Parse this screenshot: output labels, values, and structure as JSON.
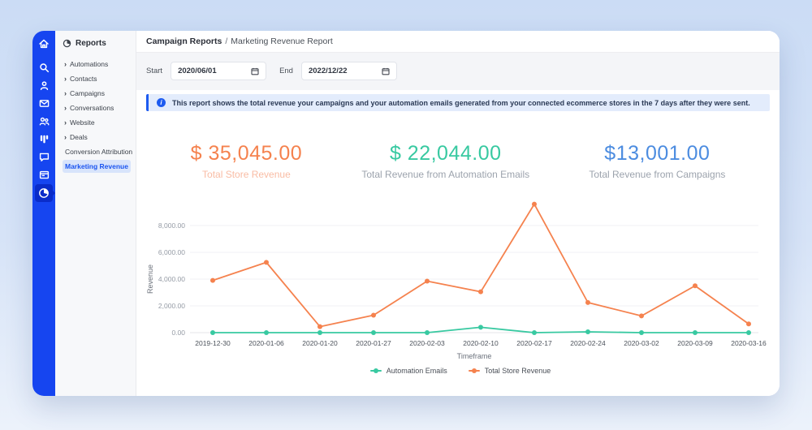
{
  "icons": {
    "chevron": "›",
    "info_letter": "i"
  },
  "sidebar": {
    "icons": [
      "home",
      "search",
      "contacts",
      "email",
      "team",
      "pipeline",
      "chat",
      "billing",
      "reports"
    ],
    "active_icon": "reports"
  },
  "reports_nav": {
    "header": "Reports",
    "items": [
      {
        "label": "Automations",
        "chevron": true,
        "selected": false
      },
      {
        "label": "Contacts",
        "chevron": true,
        "selected": false
      },
      {
        "label": "Campaigns",
        "chevron": true,
        "selected": false
      },
      {
        "label": "Conversations",
        "chevron": true,
        "selected": false
      },
      {
        "label": "Website",
        "chevron": true,
        "selected": false
      },
      {
        "label": "Deals",
        "chevron": true,
        "selected": false
      },
      {
        "label": "Conversion Attribution",
        "chevron": false,
        "selected": false
      },
      {
        "label": "Marketing Revenue",
        "chevron": false,
        "selected": true
      }
    ]
  },
  "breadcrumb": {
    "section": "Campaign Reports",
    "separator": "/",
    "page": "Marketing Revenue Report"
  },
  "filters": {
    "start_label": "Start",
    "start_value": "2020/06/01",
    "end_label": "End",
    "end_value": "2022/12/22"
  },
  "banner": {
    "text": "This report shows the total revenue your campaigns and your automation emails generated from your connected ecommerce stores in the 7 days after they were sent."
  },
  "stats": [
    {
      "value": "$ 35,045.00",
      "label": "Total Store Revenue",
      "value_color": "#f5824e",
      "label_color": "#f9bca4"
    },
    {
      "value": "$ 22,044.00",
      "label": "Total Revenue from Automation Emails",
      "value_color": "#38c9a1",
      "label_color": "#9ca3ad"
    },
    {
      "value": "$13,001.00",
      "label": "Total Revenue from Campaigns",
      "value_color": "#4c8ce0",
      "label_color": "#9ca3ad"
    }
  ],
  "chart_data": {
    "type": "line",
    "x": [
      "2019-12-30",
      "2020-01-06",
      "2020-01-20",
      "2020-01-27",
      "2020-02-03",
      "2020-02-10",
      "2020-02-17",
      "2020-02-24",
      "2020-03-02",
      "2020-03-09",
      "2020-03-16"
    ],
    "series": [
      {
        "name": "Automation Emails",
        "color": "#38c9a1",
        "values": [
          0,
          0,
          0,
          0,
          0,
          400,
          0,
          60,
          0,
          0,
          0
        ]
      },
      {
        "name": "Total Store Revenue",
        "color": "#f5824e",
        "values": [
          3900,
          5250,
          450,
          1300,
          3850,
          3050,
          9600,
          2250,
          1250,
          3500,
          650
        ]
      }
    ],
    "title": "",
    "xlabel": "Timeframe",
    "ylabel": "Revenue",
    "ylim": [
      0,
      10000
    ],
    "yticks": [
      0,
      2000,
      4000,
      6000,
      8000
    ],
    "ytick_labels": [
      "0.00",
      "2,000.00",
      "4,000.00",
      "6,000.00",
      "8,000.00"
    ],
    "grid": true,
    "legend_position": "bottom"
  }
}
